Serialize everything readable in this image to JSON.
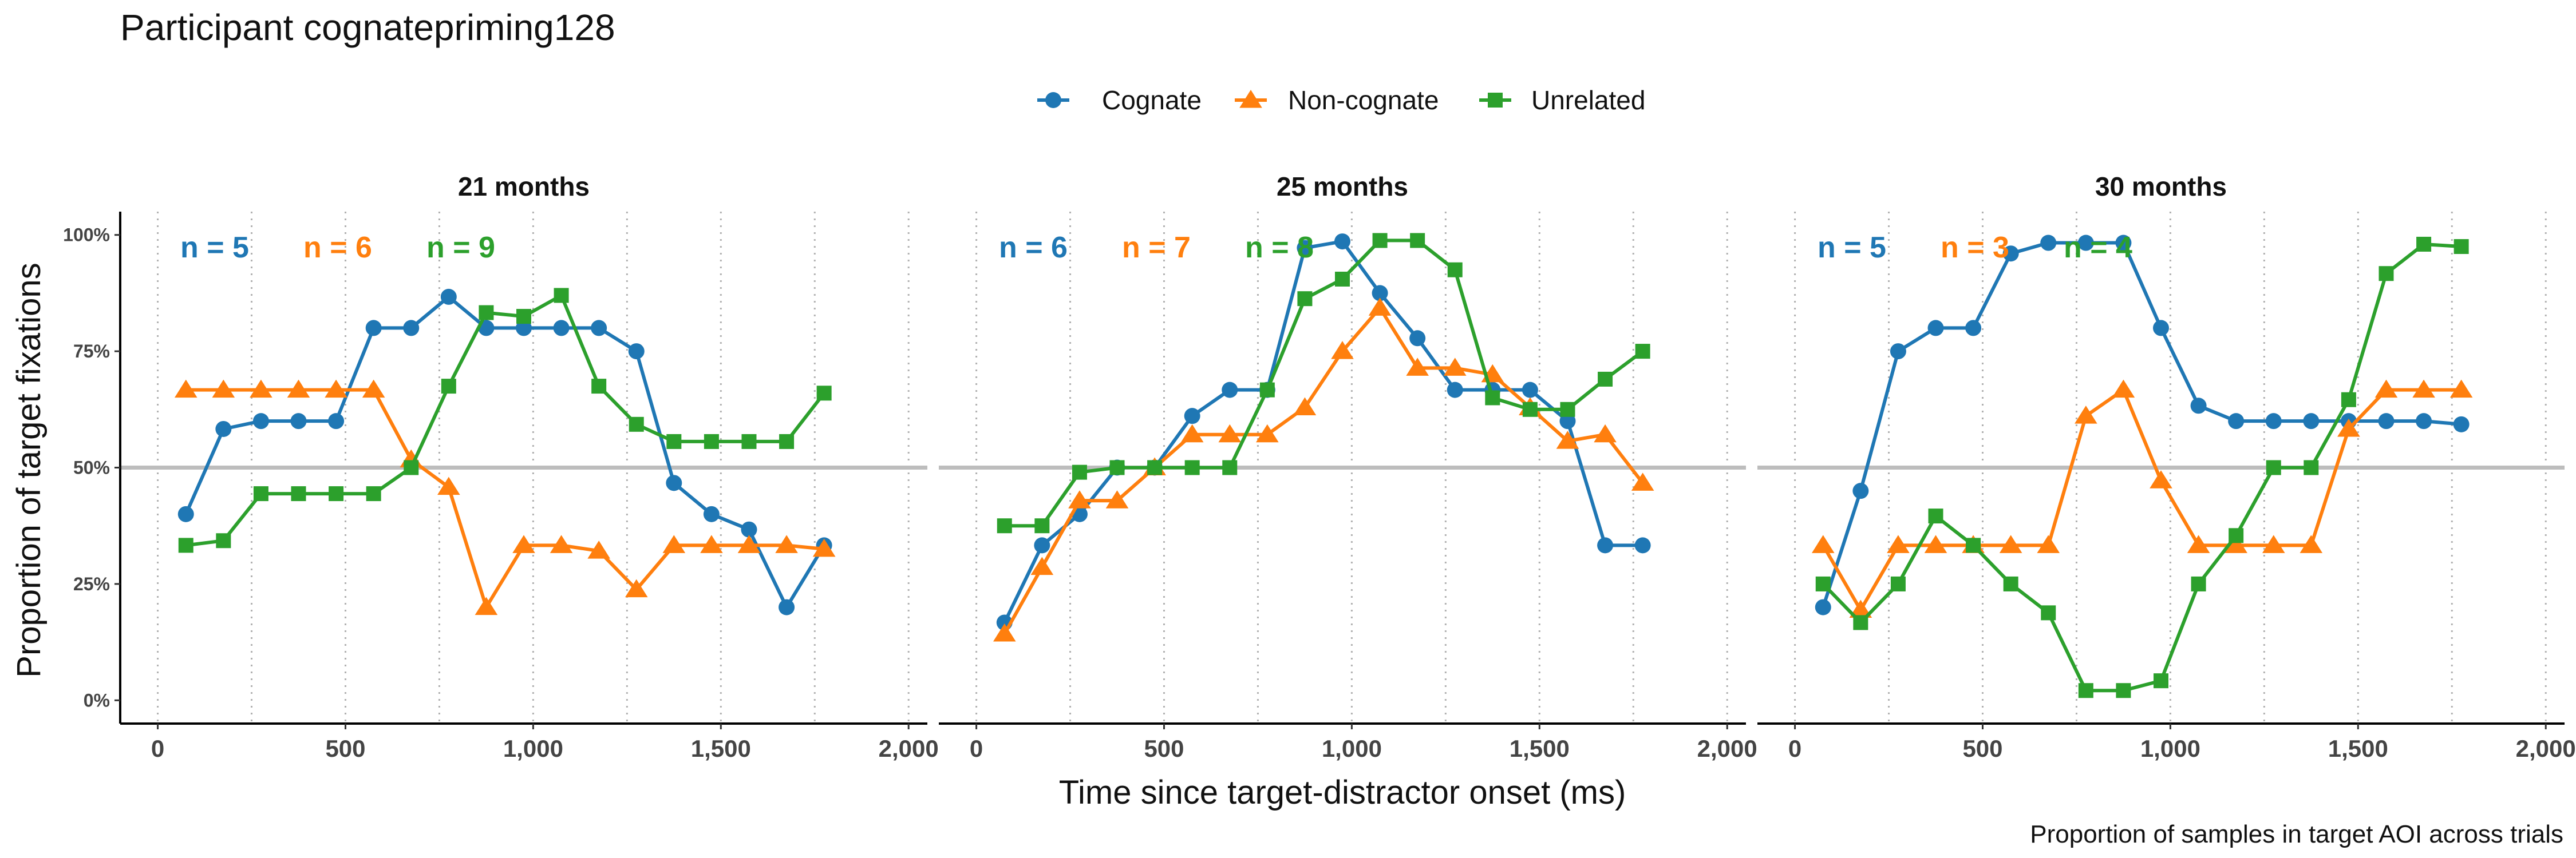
{
  "chart_data": {
    "type": "line",
    "title": "Participant cognatepriming128",
    "xlabel": "Time since target-distractor onset (ms)",
    "ylabel": "Proportion of target fixations",
    "caption": "Proportion of samples in target AOI across trials",
    "xlim": [
      -100,
      2050
    ],
    "ylim": [
      -0.05,
      1.05
    ],
    "x_ticks": [
      0,
      500,
      1000,
      1500,
      2000
    ],
    "x_tick_labels": [
      "0",
      "500",
      "1,000",
      "1,500",
      "2,000"
    ],
    "y_ticks": [
      0,
      0.25,
      0.5,
      0.75,
      1.0
    ],
    "y_tick_labels": [
      "0%",
      "25%",
      "50%",
      "75%",
      "100%"
    ],
    "reference_line": 0.5,
    "grid": "vertical dotted",
    "legend_position": "top",
    "legend": [
      {
        "name": "Cognate",
        "color": "#1f77b4",
        "marker": "circle"
      },
      {
        "name": "Non-cognate",
        "color": "#ff7f0e",
        "marker": "triangle"
      },
      {
        "name": "Unrelated",
        "color": "#2ca02c",
        "marker": "square"
      }
    ],
    "panels": [
      {
        "label": "21 months",
        "n_labels": [
          "n = 5",
          "n = 6",
          "n = 9"
        ],
        "series": [
          {
            "name": "Cognate",
            "x": [
              75,
              175,
              275,
              375,
              475,
              575,
              675,
              775,
              875,
              975,
              1075,
              1175,
              1275,
              1375,
              1475,
              1575,
              1675,
              1775
            ],
            "y": [
              0.4,
              0.583,
              0.6,
              0.6,
              0.6,
              0.8,
              0.8,
              0.867,
              0.8,
              0.8,
              0.8,
              0.8,
              0.75,
              0.467,
              0.4,
              0.367,
              0.2,
              0.333
            ]
          },
          {
            "name": "Non-cognate",
            "x": [
              75,
              175,
              275,
              375,
              475,
              575,
              675,
              775,
              875,
              975,
              1075,
              1175,
              1275,
              1375,
              1475,
              1575,
              1675,
              1775
            ],
            "y": [
              0.667,
              0.667,
              0.667,
              0.667,
              0.667,
              0.667,
              0.517,
              0.458,
              0.2,
              0.333,
              0.333,
              0.321,
              0.238,
              0.333,
              0.333,
              0.333,
              0.333,
              0.325
            ]
          },
          {
            "name": "Unrelated",
            "x": [
              75,
              175,
              275,
              375,
              475,
              575,
              675,
              775,
              875,
              975,
              1075,
              1175,
              1275,
              1375,
              1475,
              1575,
              1675,
              1775
            ],
            "y": [
              0.333,
              0.343,
              0.444,
              0.444,
              0.444,
              0.444,
              0.5,
              0.675,
              0.833,
              0.825,
              0.87,
              0.675,
              0.593,
              0.556,
              0.556,
              0.556,
              0.556,
              0.66
            ]
          }
        ]
      },
      {
        "label": "25 months",
        "n_labels": [
          "n = 6",
          "n = 7",
          "n = 8"
        ],
        "series": [
          {
            "name": "Cognate",
            "x": [
              75,
              175,
              275,
              375,
              475,
              575,
              675,
              775,
              875,
              975,
              1075,
              1175,
              1275,
              1375,
              1475,
              1575,
              1675,
              1775
            ],
            "y": [
              0.167,
              0.333,
              0.4,
              0.5,
              0.5,
              0.611,
              0.667,
              0.667,
              0.972,
              0.986,
              0.875,
              0.778,
              0.667,
              0.667,
              0.667,
              0.6,
              0.333,
              0.333
            ]
          },
          {
            "name": "Non-cognate",
            "x": [
              75,
              175,
              275,
              375,
              475,
              575,
              675,
              775,
              875,
              975,
              1075,
              1175,
              1275,
              1375,
              1475,
              1575,
              1675,
              1775
            ],
            "y": [
              0.143,
              0.286,
              0.429,
              0.429,
              0.5,
              0.571,
              0.571,
              0.571,
              0.629,
              0.75,
              0.843,
              0.714,
              0.714,
              0.7,
              0.629,
              0.557,
              0.571,
              0.467
            ]
          },
          {
            "name": "Unrelated",
            "x": [
              75,
              175,
              275,
              375,
              475,
              575,
              675,
              775,
              875,
              975,
              1075,
              1175,
              1275,
              1375,
              1475,
              1575,
              1675,
              1775
            ],
            "y": [
              0.375,
              0.375,
              0.49,
              0.5,
              0.5,
              0.5,
              0.5,
              0.667,
              0.863,
              0.905,
              0.988,
              0.988,
              0.925,
              0.65,
              0.625,
              0.625,
              0.69,
              0.75
            ]
          }
        ]
      },
      {
        "label": "30 months",
        "n_labels": [
          "n = 5",
          "n = 3",
          "n = 4"
        ],
        "series": [
          {
            "name": "Cognate",
            "x": [
              75,
              175,
              275,
              375,
              475,
              575,
              675,
              775,
              875,
              975,
              1075,
              1175,
              1275,
              1375,
              1475,
              1575,
              1675,
              1775
            ],
            "y": [
              0.2,
              0.45,
              0.75,
              0.8,
              0.8,
              0.96,
              0.983,
              0.983,
              0.983,
              0.8,
              0.633,
              0.6,
              0.6,
              0.6,
              0.6,
              0.6,
              0.6,
              0.593
            ]
          },
          {
            "name": "Non-cognate",
            "x": [
              75,
              175,
              275,
              375,
              475,
              575,
              675,
              775,
              875,
              975,
              1075,
              1175,
              1275,
              1375,
              1475,
              1575,
              1675,
              1775
            ],
            "y": [
              0.333,
              0.194,
              0.333,
              0.333,
              0.333,
              0.333,
              0.333,
              0.611,
              0.667,
              0.472,
              0.333,
              0.333,
              0.333,
              0.333,
              0.583,
              0.667,
              0.667,
              0.667
            ]
          },
          {
            "name": "Unrelated",
            "x": [
              75,
              175,
              275,
              375,
              475,
              575,
              675,
              775,
              875,
              975,
              1075,
              1175,
              1275,
              1375,
              1475,
              1575,
              1675,
              1775
            ],
            "y": [
              0.25,
              0.167,
              0.25,
              0.396,
              0.333,
              0.25,
              0.188,
              0.021,
              0.021,
              0.042,
              0.25,
              0.354,
              0.5,
              0.5,
              0.646,
              0.917,
              0.98,
              0.975
            ]
          }
        ]
      }
    ]
  }
}
